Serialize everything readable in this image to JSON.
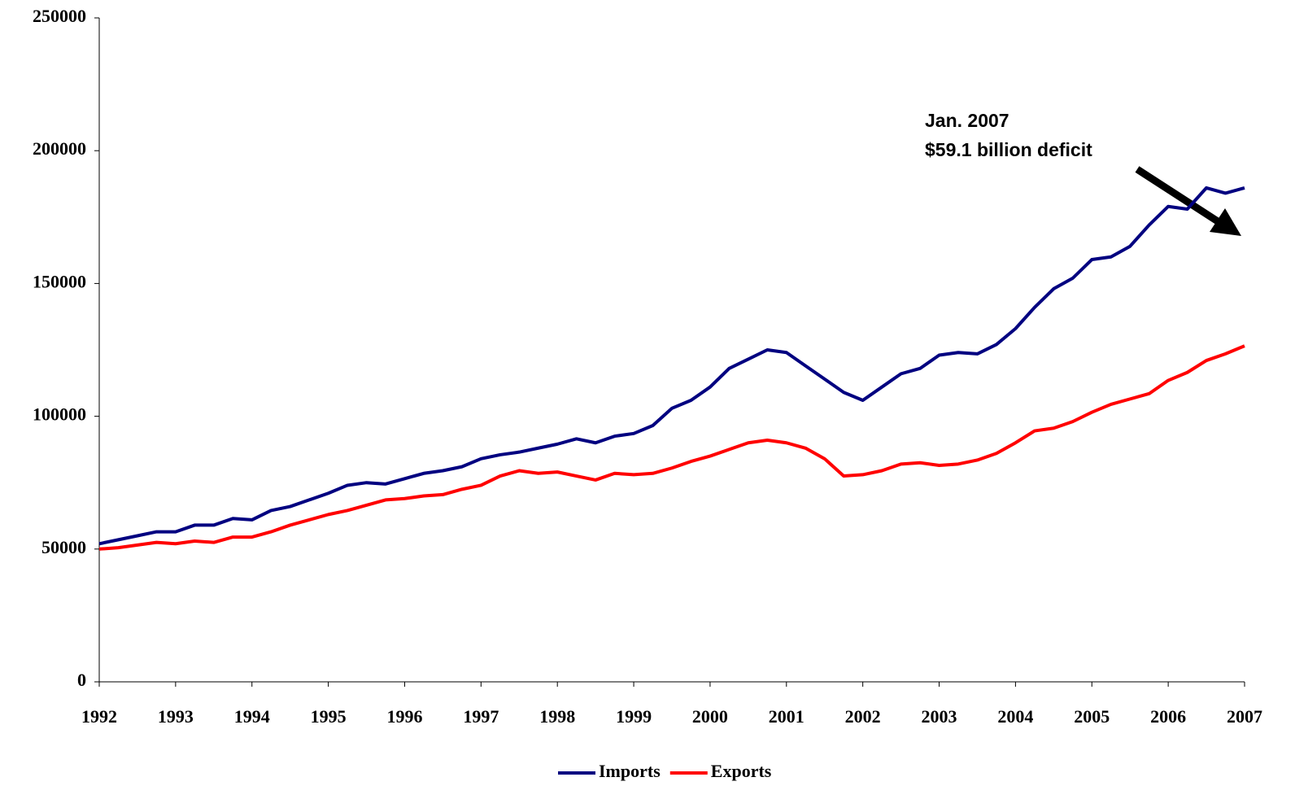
{
  "chart_data": {
    "type": "line",
    "x": [
      1992,
      1992.25,
      1992.5,
      1992.75,
      1993,
      1993.25,
      1993.5,
      1993.75,
      1994,
      1994.25,
      1994.5,
      1994.75,
      1995,
      1995.25,
      1995.5,
      1995.75,
      1996,
      1996.25,
      1996.5,
      1996.75,
      1997,
      1997.25,
      1997.5,
      1997.75,
      1998,
      1998.25,
      1998.5,
      1998.75,
      1999,
      1999.25,
      1999.5,
      1999.75,
      2000,
      2000.25,
      2000.5,
      2000.75,
      2001,
      2001.25,
      2001.5,
      2001.75,
      2002,
      2002.25,
      2002.5,
      2002.75,
      2003,
      2003.25,
      2003.5,
      2003.75,
      2004,
      2004.25,
      2004.5,
      2004.75,
      2005,
      2005.25,
      2005.5,
      2005.75,
      2006,
      2006.25,
      2006.5,
      2006.75,
      2007
    ],
    "series": [
      {
        "name": "Imports",
        "color": "#000080",
        "values": [
          52000,
          53500,
          55000,
          56500,
          56500,
          59000,
          59000,
          61500,
          61000,
          64500,
          66000,
          68500,
          71000,
          74000,
          75000,
          74500,
          76500,
          78500,
          79500,
          81000,
          84000,
          85500,
          86500,
          88000,
          89500,
          91500,
          90000,
          92500,
          93500,
          96500,
          103000,
          106000,
          111000,
          118000,
          121500,
          125000,
          124000,
          119000,
          114000,
          109000,
          106000,
          111000,
          116000,
          118000,
          123000,
          124000,
          123500,
          127000,
          133000,
          141000,
          148000,
          152000,
          159000,
          160000,
          164000,
          172000,
          179000,
          178000,
          186000,
          184000,
          186000
        ]
      },
      {
        "name": "Exports",
        "color": "#ff0000",
        "values": [
          50000,
          50500,
          51500,
          52500,
          52000,
          53000,
          52500,
          54500,
          54500,
          56500,
          59000,
          61000,
          63000,
          64500,
          66500,
          68500,
          69000,
          70000,
          70500,
          72500,
          74000,
          77500,
          79500,
          78500,
          79000,
          77500,
          76000,
          78500,
          78000,
          78500,
          80500,
          83000,
          85000,
          87500,
          90000,
          91000,
          90000,
          88000,
          84000,
          77500,
          78000,
          79500,
          82000,
          82500,
          81500,
          82000,
          83500,
          86000,
          90000,
          94500,
          95500,
          98000,
          101500,
          104500,
          106500,
          108500,
          113500,
          116500,
          121000,
          123500,
          126500
        ]
      }
    ],
    "annotation": [
      "Jan. 2007",
      "$59.1 billion deficit"
    ],
    "xlim": [
      1992,
      2007
    ],
    "xticks": [
      1992,
      1993,
      1994,
      1995,
      1996,
      1997,
      1998,
      1999,
      2000,
      2001,
      2002,
      2003,
      2004,
      2005,
      2006,
      2007
    ],
    "ylim": [
      0,
      250000
    ],
    "yticks": [
      0,
      50000,
      100000,
      150000,
      200000,
      250000
    ],
    "grid": false,
    "legend": "bottom"
  }
}
